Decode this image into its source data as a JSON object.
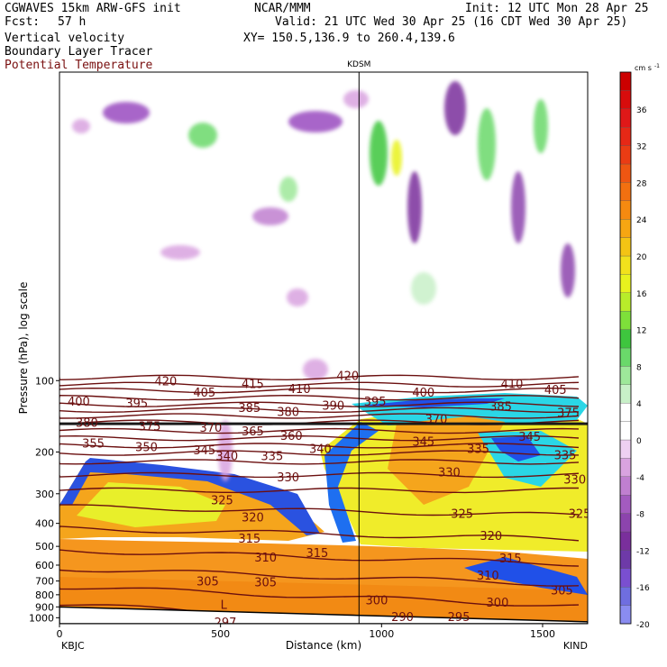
{
  "header": {
    "model": "CGWAVES 15km ARW-GFS init",
    "org": "NCAR/MMM",
    "init": "Init: 12 UTC Mon 28 Apr 25",
    "fcst_label": "Fcst:",
    "fcst_value": "57 h",
    "valid": "Valid: 21 UTC Wed 30 Apr 25 (16 CDT Wed 30 Apr 25)",
    "field1": "Vertical velocity",
    "field2": "Boundary Layer Tracer",
    "field3": "Potential Temperature",
    "xy": "XY= 150.5,136.9 to 260.4,139.6"
  },
  "colors": {
    "theta": "#6b0f0f",
    "tropopause": "#1a1a1a"
  },
  "chart_data": {
    "type": "heatmap",
    "title": "",
    "xlabel": "Distance (km)",
    "ylabel": "Pressure (hPa), log scale",
    "xlim": [
      0,
      1640
    ],
    "ylim": [
      1060,
      5
    ],
    "y_scale": "log",
    "station_left": "KBJC",
    "station_right": "KIND",
    "station_mid": "KDSM",
    "station_mid_km": 930,
    "x_ticks": [
      0,
      500,
      1000,
      1500
    ],
    "x_tick_labels": [
      "0",
      "500",
      "1000",
      "1500"
    ],
    "y_ticks": [
      100,
      200,
      300,
      400,
      500,
      600,
      700,
      800,
      900,
      1000
    ],
    "y_tick_labels": [
      "100",
      "200",
      "300",
      "400",
      "500",
      "600",
      "700",
      "800",
      "900",
      "1000"
    ],
    "colorbar": {
      "units": "cm s",
      "units_exp": "-1",
      "levels": [
        -20,
        -18,
        -16,
        -14,
        -12,
        -10,
        -8,
        -6,
        -4,
        -2,
        0,
        2,
        4,
        6,
        8,
        10,
        12,
        14,
        16,
        18,
        20,
        22,
        24,
        26,
        28,
        30,
        32,
        34,
        36,
        38,
        40
      ],
      "labels": [
        -20,
        -16,
        -12,
        -8,
        -4,
        0,
        4,
        8,
        12,
        16,
        20,
        24,
        28,
        32,
        36
      ],
      "colors": [
        "#8a8cf0",
        "#6f6ee0",
        "#7a4fd0",
        "#6e3aa8",
        "#7a2f9c",
        "#8c44ad",
        "#a35bbf",
        "#c07fd0",
        "#d9a3e0",
        "#eed0f2",
        "#ffffff",
        "#ffffff",
        "#c8f0c8",
        "#9ee89a",
        "#6ad96a",
        "#3ec63e",
        "#7ee03a",
        "#b8ec2a",
        "#e8f21e",
        "#f2e11c",
        "#f4c414",
        "#f6a612",
        "#f58a10",
        "#f27010",
        "#ee5612",
        "#ea3c14",
        "#e62816",
        "#e01818",
        "#d80c0c",
        "#cc0000"
      ]
    },
    "theta_contours": [
      {
        "value": "420",
        "x": 330,
        "p": 100
      },
      {
        "value": "415",
        "x": 600,
        "p": 103
      },
      {
        "value": "410",
        "x": 745,
        "p": 108
      },
      {
        "value": "420",
        "x": 895,
        "p": 95
      },
      {
        "value": "410",
        "x": 1405,
        "p": 103
      },
      {
        "value": "405",
        "x": 1540,
        "p": 109
      },
      {
        "value": "405",
        "x": 450,
        "p": 112
      },
      {
        "value": "400",
        "x": 60,
        "p": 122
      },
      {
        "value": "395",
        "x": 240,
        "p": 124
      },
      {
        "value": "400",
        "x": 1130,
        "p": 112
      },
      {
        "value": "395",
        "x": 980,
        "p": 122
      },
      {
        "value": "390",
        "x": 850,
        "p": 127
      },
      {
        "value": "385",
        "x": 590,
        "p": 130
      },
      {
        "value": "380",
        "x": 710,
        "p": 135
      },
      {
        "value": "385",
        "x": 1370,
        "p": 128
      },
      {
        "value": "375",
        "x": 1580,
        "p": 136
      },
      {
        "value": "380",
        "x": 85,
        "p": 150
      },
      {
        "value": "375",
        "x": 280,
        "p": 155
      },
      {
        "value": "370",
        "x": 470,
        "p": 157
      },
      {
        "value": "365",
        "x": 600,
        "p": 163
      },
      {
        "value": "370",
        "x": 1170,
        "p": 145
      },
      {
        "value": "360",
        "x": 720,
        "p": 170
      },
      {
        "value": "355",
        "x": 105,
        "p": 183
      },
      {
        "value": "350",
        "x": 270,
        "p": 190
      },
      {
        "value": "345",
        "x": 450,
        "p": 196
      },
      {
        "value": "340",
        "x": 520,
        "p": 207
      },
      {
        "value": "335",
        "x": 660,
        "p": 207
      },
      {
        "value": "340",
        "x": 810,
        "p": 193
      },
      {
        "value": "345",
        "x": 1130,
        "p": 180
      },
      {
        "value": "335",
        "x": 1300,
        "p": 193
      },
      {
        "value": "345",
        "x": 1460,
        "p": 172
      },
      {
        "value": "335",
        "x": 1570,
        "p": 205
      },
      {
        "value": "330",
        "x": 710,
        "p": 255
      },
      {
        "value": "330",
        "x": 1210,
        "p": 243
      },
      {
        "value": "330",
        "x": 1600,
        "p": 260
      },
      {
        "value": "325",
        "x": 505,
        "p": 318
      },
      {
        "value": "325",
        "x": 1250,
        "p": 362
      },
      {
        "value": "325",
        "x": 1615,
        "p": 362
      },
      {
        "value": "320",
        "x": 600,
        "p": 375
      },
      {
        "value": "320",
        "x": 1340,
        "p": 450
      },
      {
        "value": "315",
        "x": 590,
        "p": 462
      },
      {
        "value": "315",
        "x": 800,
        "p": 530
      },
      {
        "value": "315",
        "x": 1400,
        "p": 560
      },
      {
        "value": "310",
        "x": 640,
        "p": 555
      },
      {
        "value": "310",
        "x": 1330,
        "p": 660
      },
      {
        "value": "305",
        "x": 460,
        "p": 700
      },
      {
        "value": "305",
        "x": 640,
        "p": 705
      },
      {
        "value": "305",
        "x": 1560,
        "p": 765
      },
      {
        "value": "300",
        "x": 985,
        "p": 840
      },
      {
        "value": "300",
        "x": 1360,
        "p": 860
      },
      {
        "value": "290",
        "x": 1065,
        "p": 990
      },
      {
        "value": "295",
        "x": 1240,
        "p": 990
      },
      {
        "value": "297",
        "x": 515,
        "p": 1040
      }
    ],
    "low_marker": {
      "label": "L",
      "x": 510,
      "p": 880
    }
  }
}
